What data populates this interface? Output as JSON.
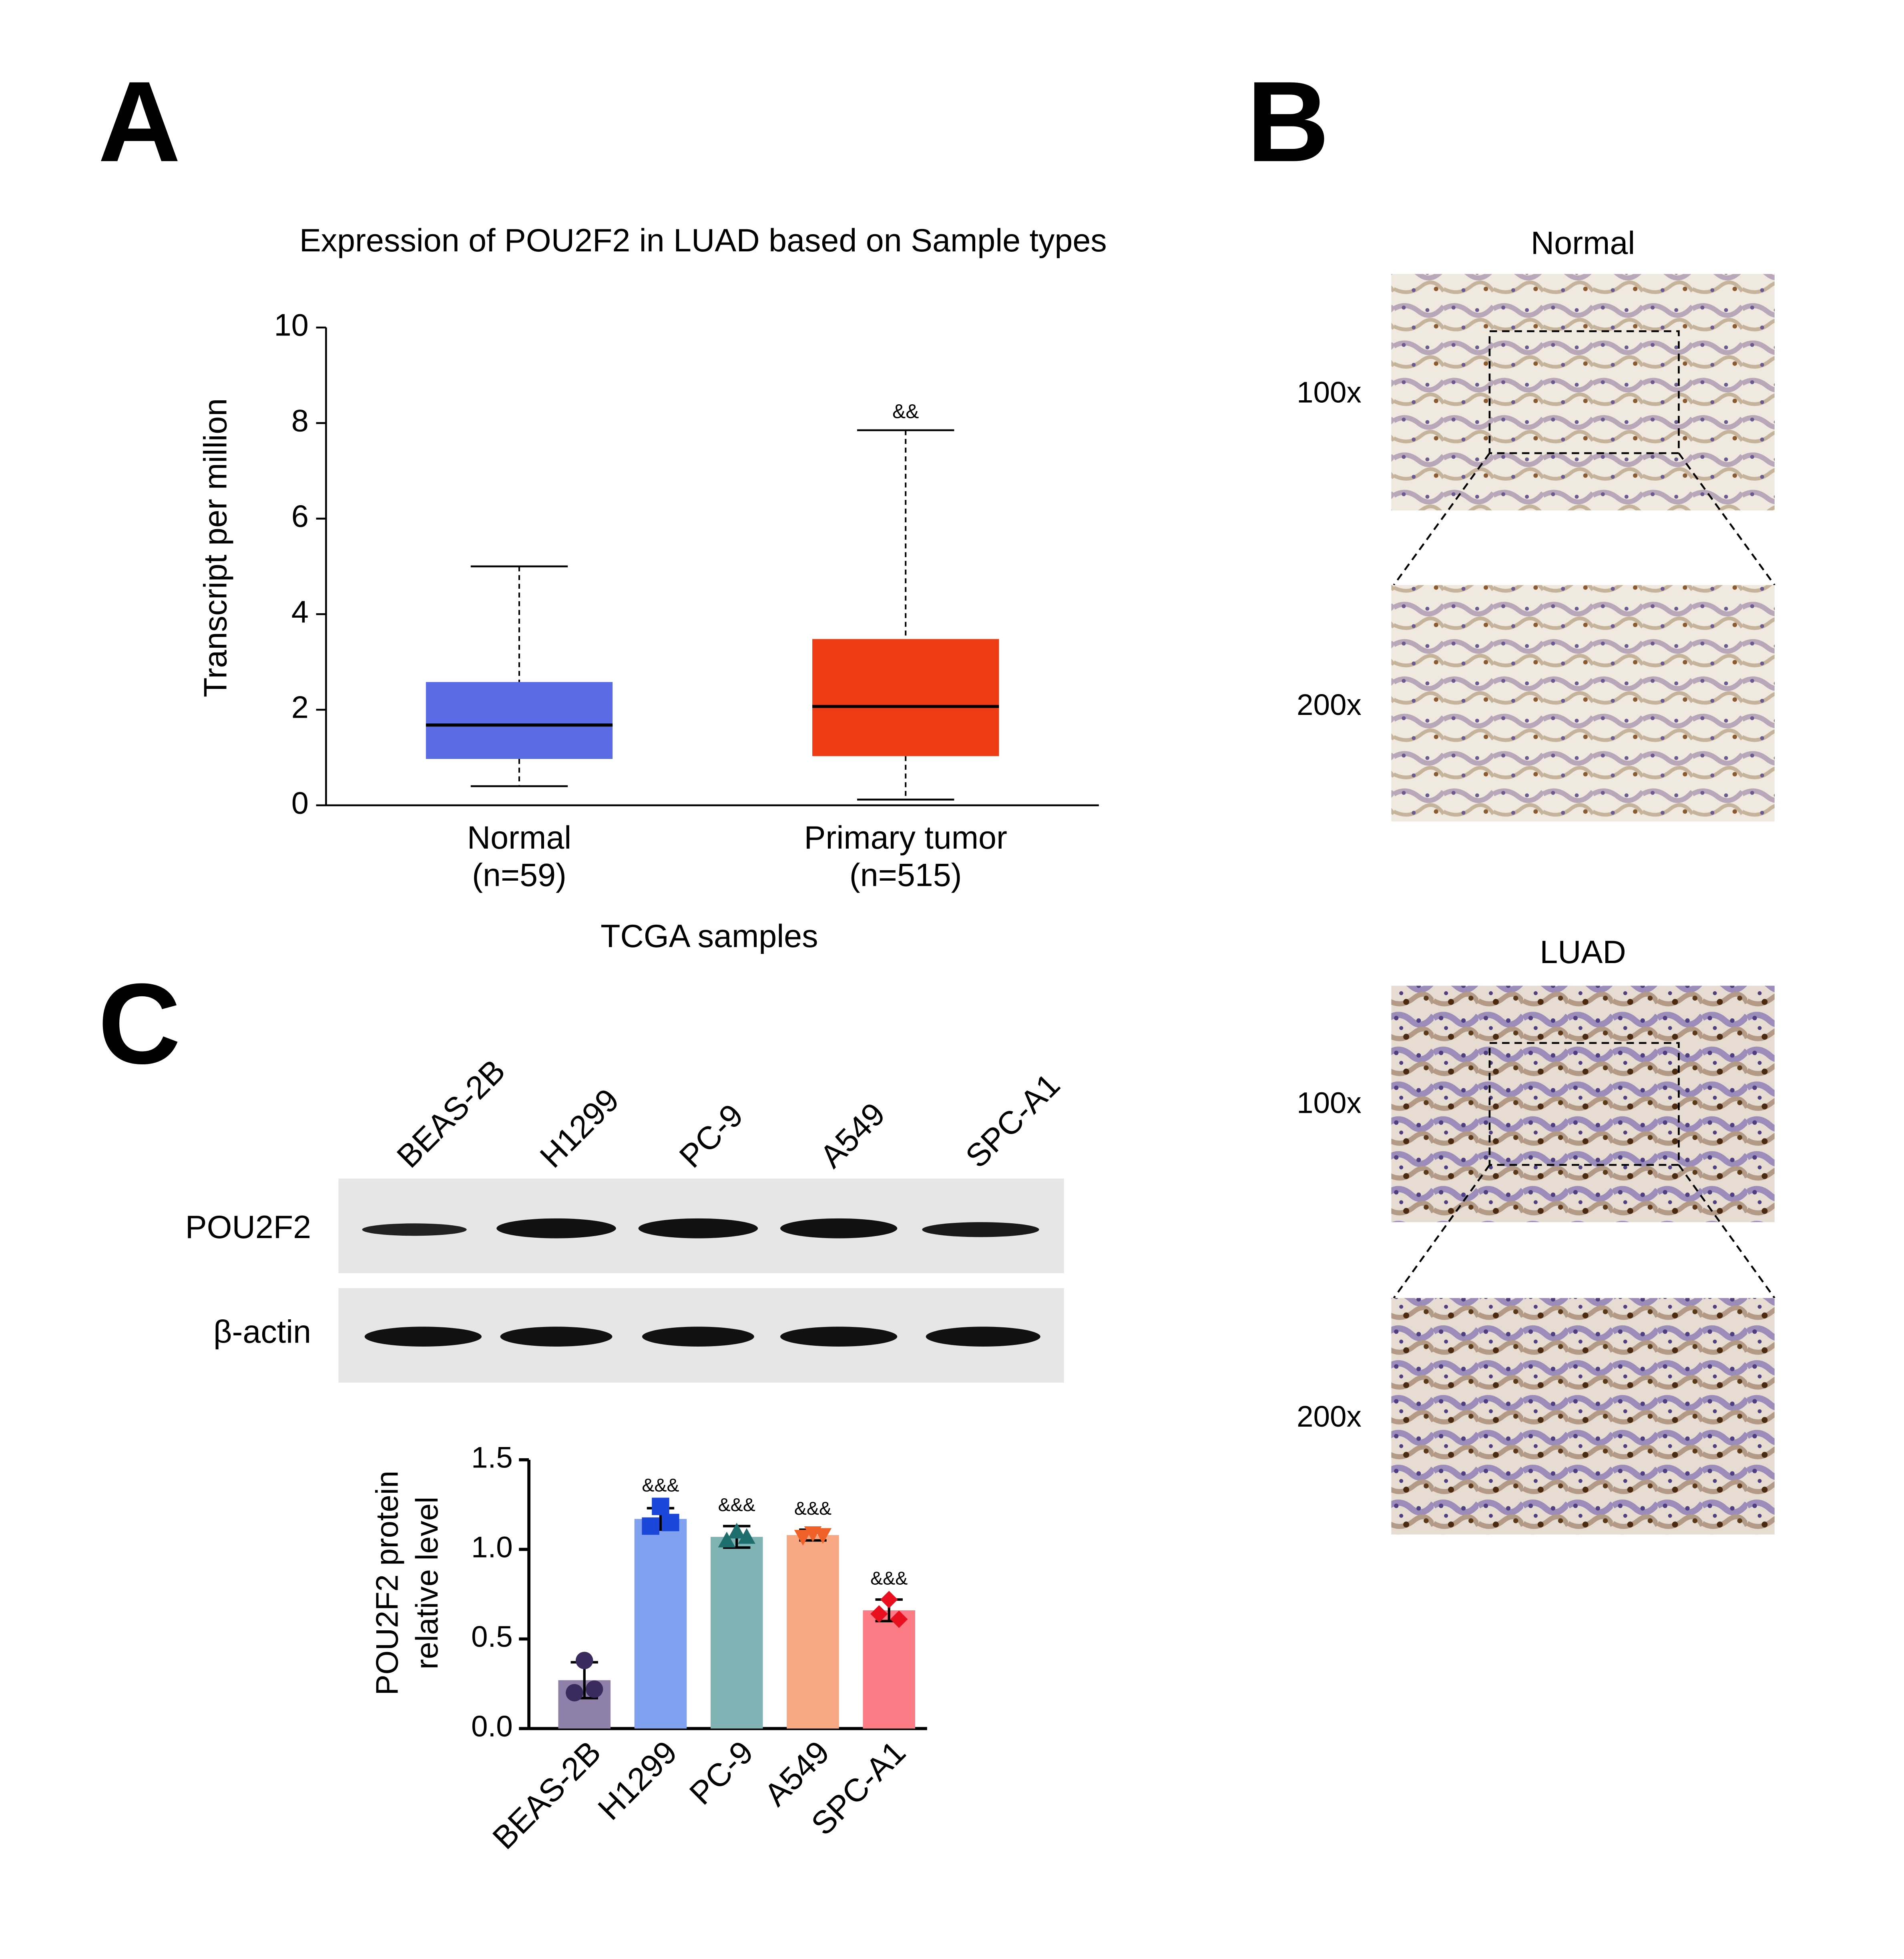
{
  "panels": {
    "a": "A",
    "b": "B",
    "c": "C"
  },
  "chart_data": [
    {
      "type": "box",
      "title": "Expression of POU2F2 in LUAD based on Sample types",
      "ylabel": "Transcript per million",
      "xlabel": "TCGA samples",
      "ylim": [
        0,
        10
      ],
      "yticks": [
        0,
        2,
        4,
        6,
        8,
        10
      ],
      "boxes": [
        {
          "category": "Normal",
          "sublabel": "(n=59)",
          "color": "#5b6be6",
          "min": 0.4,
          "q1": 0.97,
          "median": 1.68,
          "q3": 2.58,
          "max": 5.0
        },
        {
          "category": "Primary tumor",
          "sublabel": "(n=515)",
          "color": "#ee3b14",
          "min": 0.12,
          "q1": 1.03,
          "median": 2.07,
          "q3": 3.48,
          "max": 7.85,
          "annotation": "&&"
        }
      ]
    },
    {
      "type": "bar",
      "ylabel": [
        "POU2F2 protein",
        "relative level"
      ],
      "categories": [
        "BEAS-2B",
        "H1299",
        "PC-9",
        "A549",
        "SPC-A1"
      ],
      "values": [
        0.27,
        1.17,
        1.07,
        1.08,
        0.66
      ],
      "errors": [
        0.1,
        0.06,
        0.06,
        0.03,
        0.06
      ],
      "points": [
        [
          0.38,
          0.2,
          0.22
        ],
        [
          1.24,
          1.13,
          1.15
        ],
        [
          1.1,
          1.05,
          1.07
        ],
        [
          1.09,
          1.07,
          1.08
        ],
        [
          0.72,
          0.64,
          0.61
        ]
      ],
      "colors": [
        "#8f80aa",
        "#80a0f0",
        "#80b4b4",
        "#f8a882",
        "#fc7b84"
      ],
      "point_colors": [
        "#3b2a5e",
        "#1a46d9",
        "#1e6e6e",
        "#f0612a",
        "#e8101f"
      ],
      "markers": [
        "circle",
        "square",
        "triangle",
        "triangle-down",
        "diamond"
      ],
      "annotations": [
        null,
        "&&&",
        "&&&",
        "&&&",
        "&&&"
      ],
      "ylim": [
        0,
        1.5
      ],
      "yticks": [
        {
          "value": 0,
          "label": "0.0"
        },
        {
          "value": 0.5,
          "label": "0.5"
        },
        {
          "value": 1,
          "label": "1.0"
        },
        {
          "value": 1.5,
          "label": "1.5"
        }
      ]
    }
  ],
  "histology": {
    "groups": [
      {
        "title": "Normal",
        "magnifications": [
          "100x",
          "200x"
        ]
      },
      {
        "title": "LUAD",
        "magnifications": [
          "100x",
          "200x"
        ]
      }
    ]
  },
  "western_blot": {
    "lanes": [
      "BEAS-2B",
      "H1299",
      "PC-9",
      "A549",
      "SPC-A1"
    ],
    "rows": [
      "POU2F2",
      "β-actin"
    ]
  }
}
